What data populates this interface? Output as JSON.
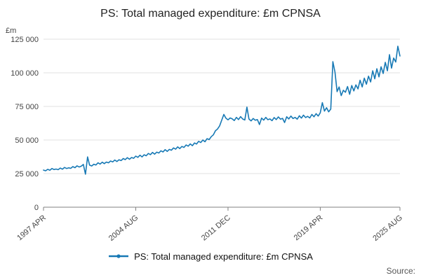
{
  "title": "PS: Total managed expenditure: £m CPNSA",
  "legend": {
    "label": "PS: Total managed expenditure: £m CPNSA"
  },
  "source": {
    "label": "Source:"
  },
  "colors": {
    "line": "#1779b5",
    "grid": "#e0e0e0",
    "axis": "#808080",
    "text": "#444444"
  },
  "chart_data": {
    "type": "line",
    "title": "PS: Total managed expenditure: £m CPNSA",
    "xlabel": "",
    "ylabel": "£m",
    "ylim": [
      0,
      125000
    ],
    "grid": "horizontal",
    "legend_position": "bottom",
    "x_start": "1997 APR",
    "x_end": "2025 AUG",
    "frequency": "bi-monthly",
    "y_ticks": [
      {
        "value": 0,
        "label": "0"
      },
      {
        "value": 25000,
        "label": "25 000"
      },
      {
        "value": 50000,
        "label": "50 000"
      },
      {
        "value": 75000,
        "label": "75 000"
      },
      {
        "value": 100000,
        "label": "100 000"
      },
      {
        "value": 125000,
        "label": "125 000"
      }
    ],
    "x_ticks": [
      {
        "i": 0,
        "label": "1997 APR"
      },
      {
        "i": 44,
        "label": "2004 AUG"
      },
      {
        "i": 88,
        "label": "2011 DEC"
      },
      {
        "i": 132,
        "label": "2019 APR"
      },
      {
        "i": 170,
        "label": "2025 AUG"
      }
    ],
    "values": [
      27600,
      27100,
      28200,
      27500,
      28800,
      28000,
      28400,
      27900,
      29100,
      28300,
      29600,
      28800,
      29300,
      28900,
      30200,
      29400,
      30800,
      29900,
      30500,
      31800,
      24600,
      37400,
      31300,
      30700,
      32000,
      31400,
      33000,
      32100,
      33500,
      32400,
      33600,
      33000,
      34400,
      33700,
      35100,
      34000,
      35300,
      34700,
      36200,
      35400,
      36900,
      35700,
      37000,
      36400,
      38000,
      37100,
      38700,
      37400,
      39000,
      38300,
      40000,
      39100,
      40800,
      39500,
      41000,
      40300,
      42000,
      41100,
      42800,
      41500,
      43000,
      42400,
      44100,
      43200,
      44900,
      43600,
      45200,
      44500,
      46300,
      45400,
      47100,
      45800,
      47800,
      47000,
      49000,
      48100,
      50000,
      48700,
      51000,
      50300,
      52500,
      53800,
      56800,
      58200,
      60500,
      64800,
      69000,
      66200,
      65000,
      66400,
      65800,
      64500,
      66800,
      65200,
      67400,
      65600,
      64900,
      74500,
      65600,
      64200,
      66000,
      64700,
      65200,
      61500,
      66300,
      64800,
      66800,
      65100,
      65700,
      64400,
      66700,
      65200,
      67200,
      65500,
      66100,
      63000,
      67300,
      65700,
      67800,
      66000,
      66800,
      65500,
      68000,
      66300,
      68500,
      66700,
      67600,
      66400,
      69000,
      67300,
      69600,
      67800,
      70200,
      77800,
      71500,
      74000,
      71000,
      73000,
      108300,
      100500,
      86000,
      89500,
      83000,
      87000,
      85500,
      89800,
      84000,
      90500,
      86500,
      91000,
      88000,
      94500,
      89500,
      96000,
      91500,
      97500,
      93200,
      101500,
      95500,
      103000,
      97000,
      104500,
      99500,
      107800,
      101500,
      113500,
      103500,
      111000,
      108000,
      119800,
      112500
    ]
  }
}
